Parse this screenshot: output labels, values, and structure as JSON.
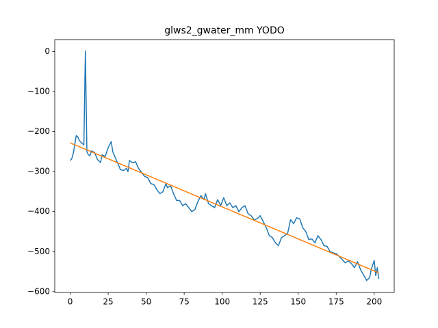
{
  "chart_data": {
    "type": "line",
    "title": "glws2_gwater_mm YODO",
    "series": [
      {
        "color": "#1f77b4",
        "x": [
          0,
          1,
          2,
          4,
          5,
          6,
          8,
          9,
          10,
          11,
          12,
          13,
          14,
          16,
          18,
          20,
          21,
          23,
          25,
          27,
          28,
          30,
          32,
          33,
          35,
          37,
          38,
          39,
          41,
          43,
          45,
          47,
          49,
          51,
          53,
          55,
          57,
          59,
          61,
          63,
          64,
          66,
          68,
          70,
          72,
          74,
          76,
          78,
          80,
          82,
          84,
          86,
          88,
          89,
          91,
          93,
          95,
          97,
          99,
          101,
          103,
          105,
          107,
          109,
          111,
          113,
          115,
          117,
          119,
          121,
          123,
          125,
          127,
          129,
          131,
          133,
          135,
          137,
          139,
          141,
          143,
          145,
          147,
          149,
          151,
          153,
          155,
          157,
          159,
          161,
          163,
          165,
          167,
          169,
          171,
          173,
          175,
          177,
          179,
          181,
          183,
          185,
          187,
          189,
          191,
          193,
          195,
          197,
          198,
          200,
          201,
          202,
          203
        ],
        "values": [
          -272,
          -268,
          -255,
          -210,
          -213,
          -222,
          -230,
          -233,
          2,
          -250,
          -258,
          -260,
          -248,
          -252,
          -270,
          -277,
          -258,
          -262,
          -240,
          -225,
          -250,
          -268,
          -285,
          -295,
          -297,
          -292,
          -300,
          -272,
          -278,
          -275,
          -292,
          -302,
          -312,
          -315,
          -330,
          -332,
          -345,
          -355,
          -350,
          -330,
          -340,
          -335,
          -355,
          -372,
          -372,
          -385,
          -380,
          -390,
          -400,
          -395,
          -375,
          -360,
          -370,
          -355,
          -380,
          -385,
          -390,
          -370,
          -385,
          -365,
          -385,
          -378,
          -390,
          -385,
          -400,
          -390,
          -385,
          -405,
          -410,
          -420,
          -418,
          -410,
          -425,
          -440,
          -460,
          -465,
          -478,
          -485,
          -465,
          -460,
          -455,
          -420,
          -430,
          -415,
          -418,
          -440,
          -450,
          -470,
          -468,
          -478,
          -460,
          -470,
          -485,
          -487,
          -500,
          -503,
          -505,
          -512,
          -520,
          -528,
          -523,
          -530,
          -540,
          -525,
          -545,
          -558,
          -572,
          -565,
          -545,
          -522,
          -560,
          -540,
          -568
        ]
      },
      {
        "color": "#ff7f0e",
        "x": [
          0,
          203
        ],
        "values": [
          -228,
          -553
        ]
      }
    ],
    "xlim": [
      -10.15,
      213.15
    ],
    "xticks": [
      0,
      25,
      50,
      75,
      100,
      125,
      150,
      175,
      200
    ],
    "ylim": [
      -602,
      30
    ],
    "yticks": [
      {
        "value": -600,
        "label": "−600"
      },
      {
        "value": -500,
        "label": "−500"
      },
      {
        "value": -400,
        "label": "−400"
      },
      {
        "value": -300,
        "label": "−300"
      },
      {
        "value": -200,
        "label": "−200"
      },
      {
        "value": -100,
        "label": "−100"
      },
      0
    ]
  }
}
